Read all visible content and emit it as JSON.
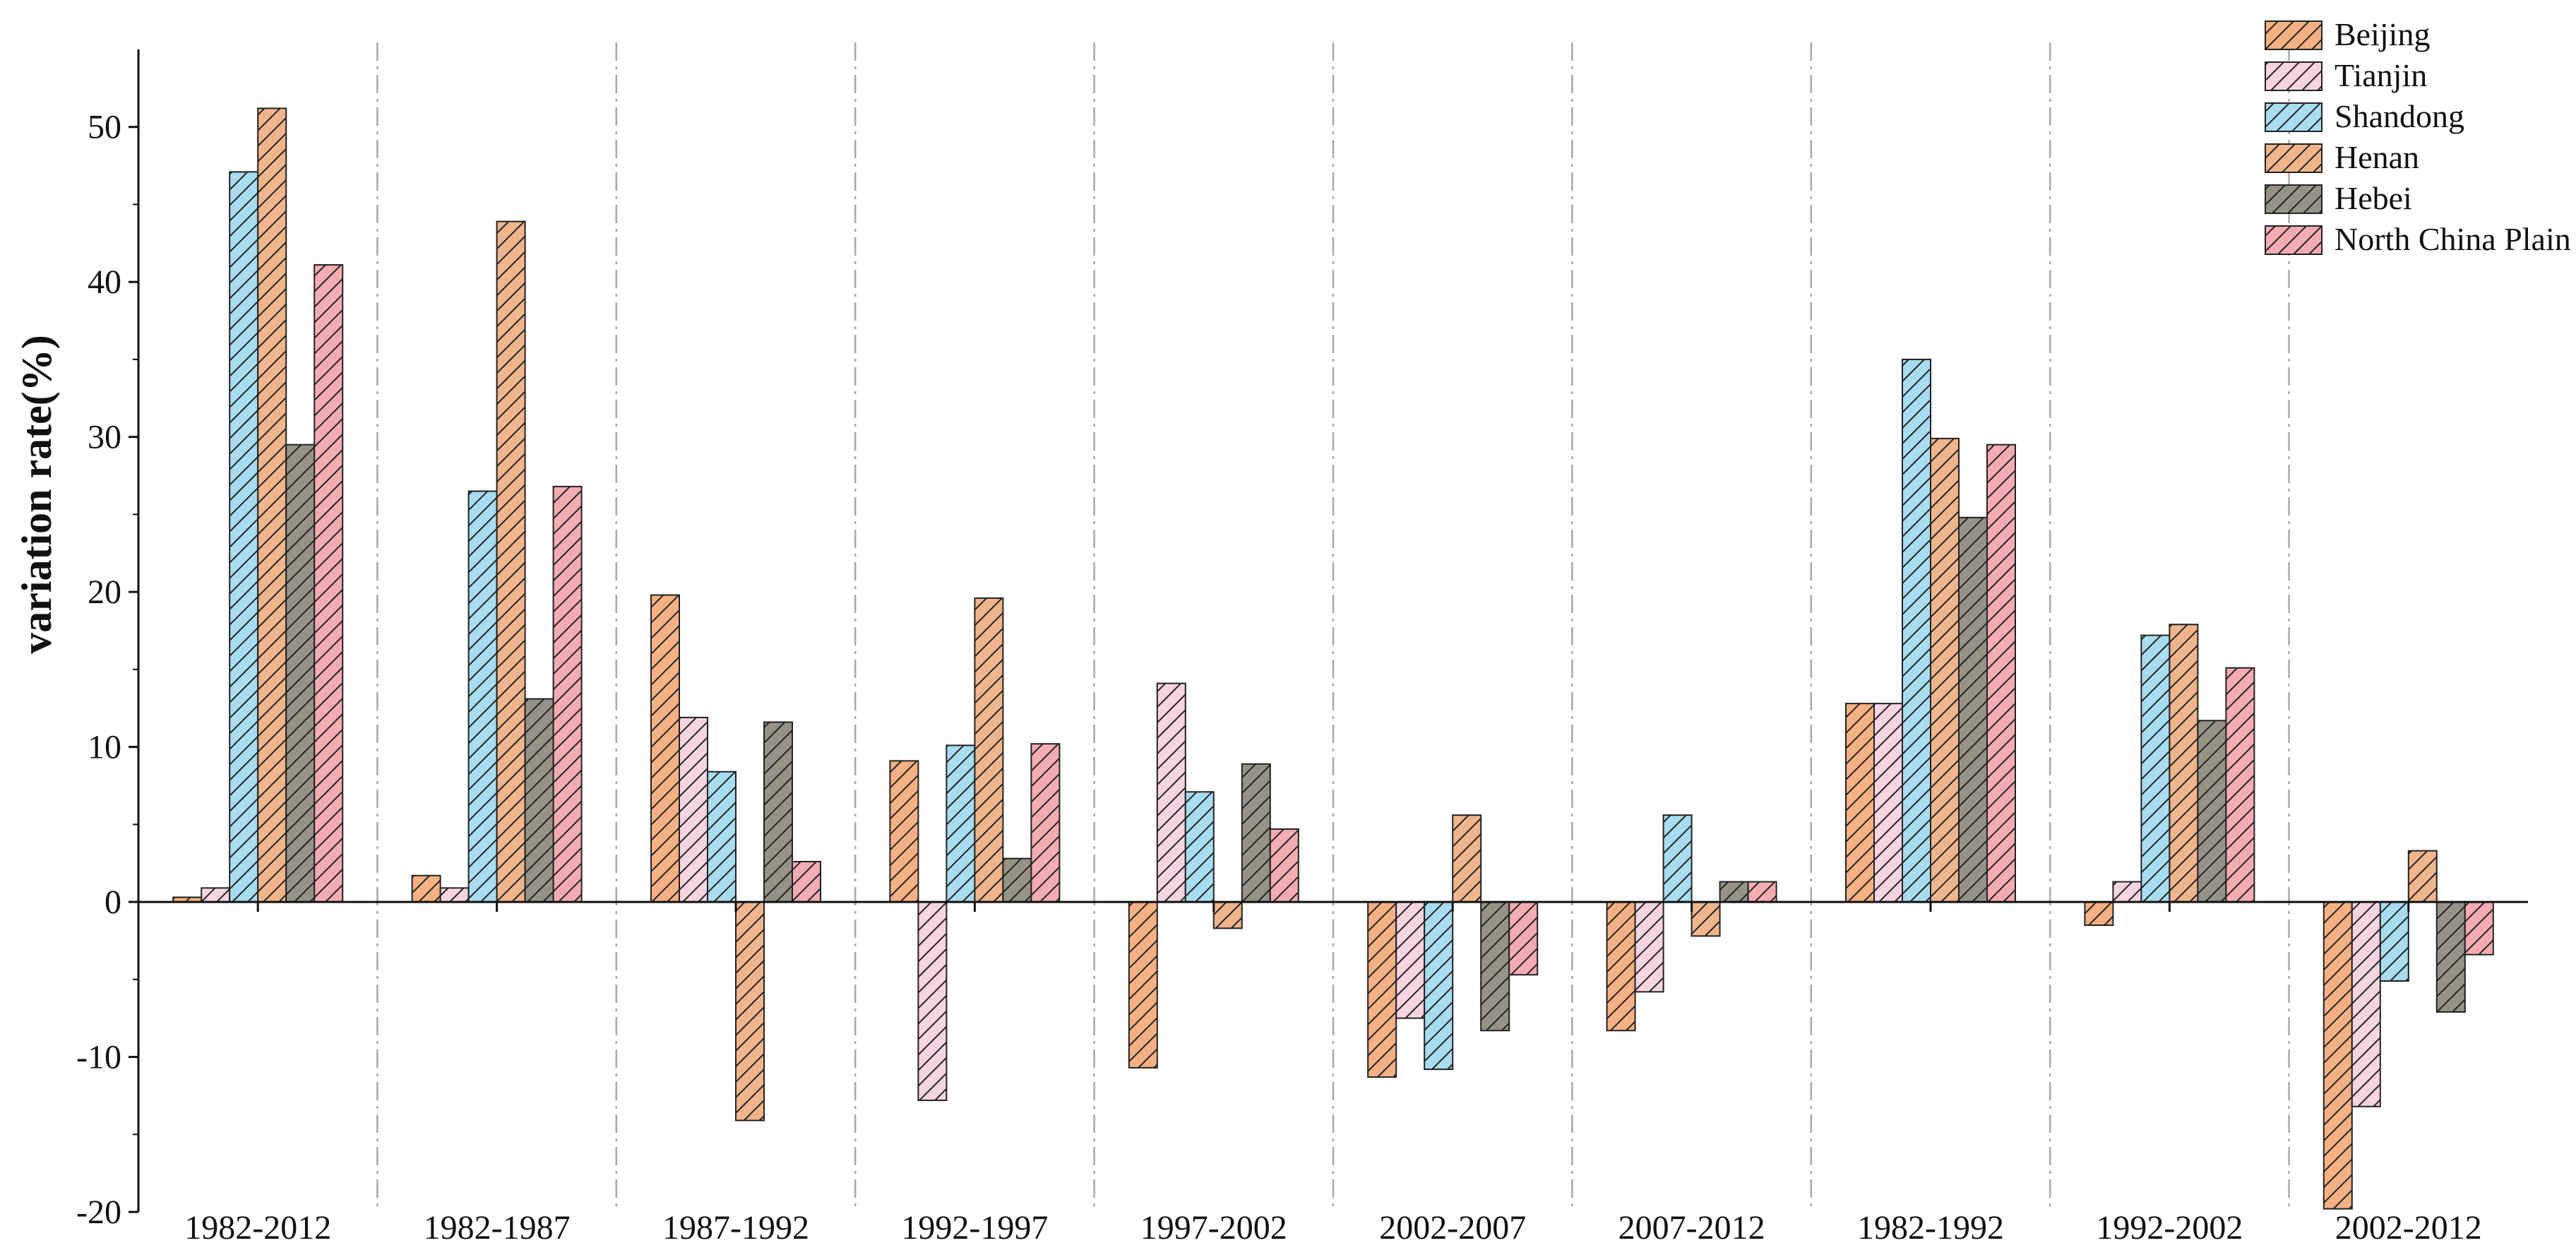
{
  "chart_data": {
    "type": "bar",
    "title": "",
    "xlabel": "",
    "ylabel": "variation rate(%)",
    "ylim": [
      -20,
      55
    ],
    "yticks": [
      -20,
      -10,
      0,
      10,
      20,
      30,
      40,
      50
    ],
    "grid": false,
    "group_separators": true,
    "legend_position": "top-right",
    "categories": [
      "1982-2012",
      "1982-1987",
      "1987-1992",
      "1992-1997",
      "1997-2002",
      "2002-2007",
      "2007-2012",
      "1982-1992",
      "1992-2002",
      "2002-2012"
    ],
    "series": [
      {
        "name": "Beijing",
        "color": "#f5b183",
        "values": [
          0.3,
          1.7,
          19.8,
          9.1,
          -10.7,
          -11.3,
          -8.3,
          12.8,
          -1.5,
          -19.8
        ]
      },
      {
        "name": "Tianjin",
        "color": "#f7d4e2",
        "values": [
          0.9,
          0.9,
          11.9,
          -12.8,
          14.1,
          -7.5,
          -5.8,
          12.8,
          1.3,
          -13.2
        ]
      },
      {
        "name": "Shandong",
        "color": "#a8dcf0",
        "values": [
          47.1,
          26.5,
          8.4,
          10.1,
          7.1,
          -10.8,
          5.6,
          35.0,
          17.2,
          -5.1
        ]
      },
      {
        "name": "Henan",
        "color": "#f0b58c",
        "values": [
          51.2,
          43.9,
          -14.1,
          19.6,
          -1.7,
          5.6,
          -2.2,
          29.9,
          17.9,
          3.3
        ]
      },
      {
        "name": "Hebei",
        "color": "#959386",
        "values": [
          29.5,
          13.1,
          11.6,
          2.8,
          8.9,
          -8.3,
          1.3,
          24.8,
          11.7,
          -7.1
        ]
      },
      {
        "name": "North China Plain",
        "color": "#f4acb2",
        "values": [
          41.1,
          26.8,
          2.6,
          10.2,
          4.7,
          -4.7,
          1.3,
          29.5,
          15.1,
          -3.4
        ]
      }
    ]
  }
}
